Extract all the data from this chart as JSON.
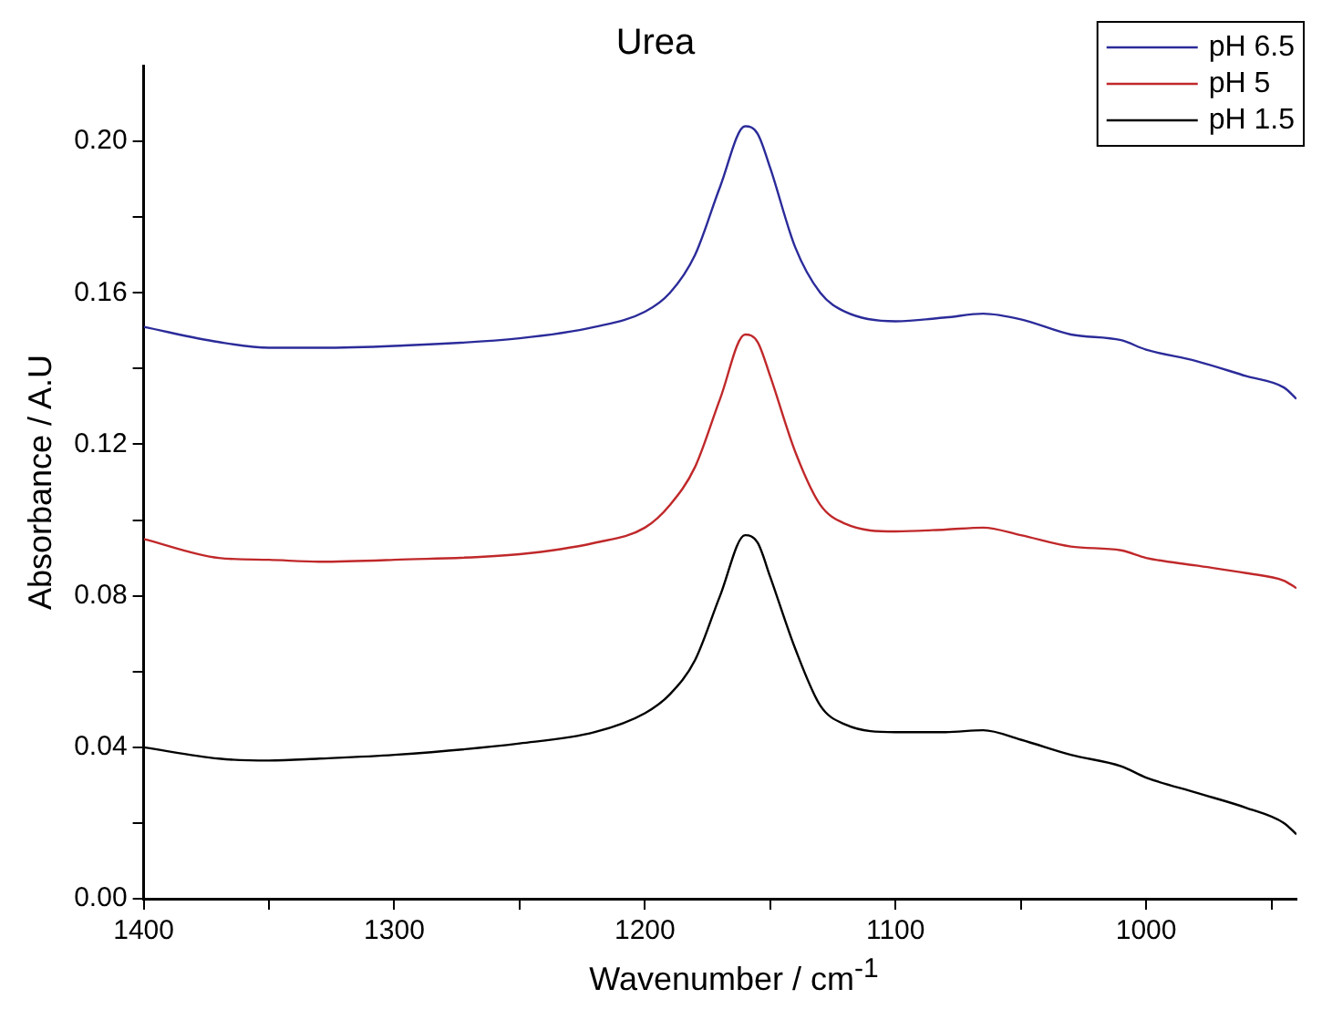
{
  "chart_data": {
    "type": "line",
    "title": "Urea",
    "xlabel": "Wavenumber / cm$^{-1}$",
    "ylabel": "Absorbance / A.U",
    "xlim": [
      1400,
      940
    ],
    "ylim": [
      0,
      0.22
    ],
    "xticks": [
      1400,
      {
        "value": 1350,
        "label": null
      },
      1300,
      {
        "value": 1250,
        "label": null
      },
      1200,
      {
        "value": 1150,
        "label": null
      },
      1100,
      {
        "value": 1050,
        "label": null
      },
      1000,
      {
        "value": 950,
        "label": null
      }
    ],
    "yticks": [
      "0.00",
      {
        "value": 0.02,
        "label": null
      },
      {
        "value": 0.04,
        "label": "0.04"
      },
      {
        "value": 0.06,
        "label": null
      },
      {
        "value": 0.08,
        "label": "0.08"
      },
      {
        "value": 0.1,
        "label": null
      },
      {
        "value": 0.12,
        "label": "0.12"
      },
      {
        "value": 0.14,
        "label": null
      },
      {
        "value": 0.16,
        "label": "0.16"
      },
      {
        "value": 0.18,
        "label": null
      },
      {
        "value": 0.2,
        "label": "0.20"
      }
    ],
    "x": [
      1400,
      1370,
      1350,
      1330,
      1300,
      1250,
      1220,
      1200,
      1190,
      1180,
      1170,
      1160,
      1155,
      1150,
      1140,
      1130,
      1120,
      1100,
      1080,
      1065,
      1050,
      1030,
      1010,
      1000,
      980,
      960,
      945,
      940
    ],
    "series": [
      {
        "name": "pH 6.5",
        "color": "#2b2b9a",
        "values": [
          0.151,
          0.147,
          0.1455,
          0.1455,
          0.146,
          0.148,
          0.151,
          0.155,
          0.16,
          0.17,
          0.188,
          0.204,
          0.202,
          0.193,
          0.172,
          0.16,
          0.155,
          0.1525,
          0.1535,
          0.1545,
          0.153,
          0.149,
          0.1475,
          0.145,
          0.142,
          0.138,
          0.135,
          0.132
        ]
      },
      {
        "name": "pH 5",
        "color": "#c0282a",
        "values": [
          0.095,
          0.09,
          0.0895,
          0.089,
          0.0895,
          0.091,
          0.094,
          0.098,
          0.104,
          0.114,
          0.132,
          0.149,
          0.147,
          0.138,
          0.118,
          0.104,
          0.099,
          0.097,
          0.0975,
          0.098,
          0.096,
          0.093,
          0.092,
          0.09,
          0.088,
          0.086,
          0.084,
          0.082
        ]
      },
      {
        "name": "pH 1.5",
        "color": "#000000",
        "values": [
          0.04,
          0.037,
          0.0365,
          0.037,
          0.038,
          0.041,
          0.044,
          0.049,
          0.054,
          0.063,
          0.08,
          0.096,
          0.094,
          0.085,
          0.066,
          0.051,
          0.046,
          0.044,
          0.044,
          0.0445,
          0.042,
          0.038,
          0.035,
          0.032,
          0.028,
          0.024,
          0.02,
          0.017
        ]
      }
    ],
    "legend": "top right",
    "grid": false,
    "marker": "none",
    "line_style": "solid"
  }
}
